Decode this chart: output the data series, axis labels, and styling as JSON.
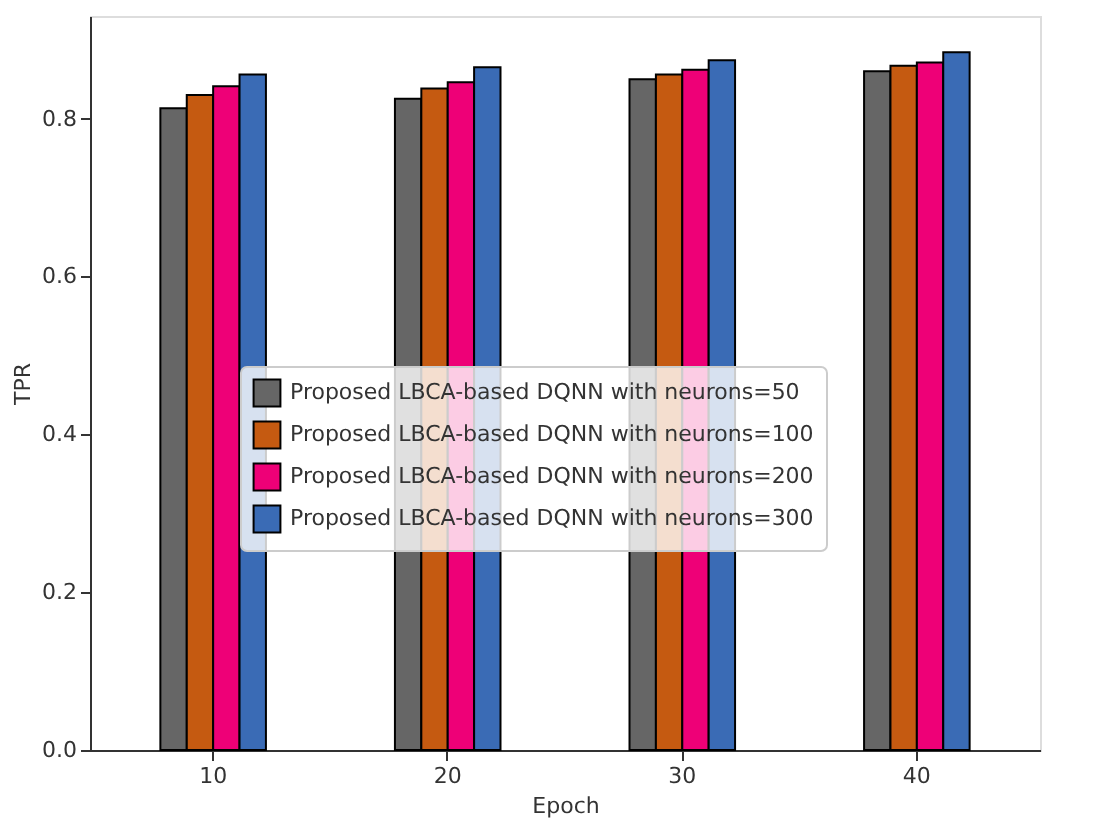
{
  "chart_data": {
    "type": "bar",
    "xlabel": "Epoch",
    "ylabel": "TPR",
    "categories": [
      "10",
      "20",
      "30",
      "40"
    ],
    "series": [
      {
        "name": "Proposed LBCA-based DQNN with neurons=50",
        "color": "#666666",
        "values": [
          0.813,
          0.825,
          0.85,
          0.86
        ]
      },
      {
        "name": "Proposed LBCA-based DQNN with neurons=100",
        "color": "#c55a11",
        "values": [
          0.83,
          0.838,
          0.856,
          0.867
        ]
      },
      {
        "name": "Proposed LBCA-based DQNN with neurons=200",
        "color": "#ee0077",
        "values": [
          0.841,
          0.846,
          0.862,
          0.871
        ]
      },
      {
        "name": "Proposed LBCA-based DQNN with neurons=300",
        "color": "#3a6bb5",
        "values": [
          0.856,
          0.865,
          0.874,
          0.884
        ]
      }
    ],
    "ylim": [
      0,
      0.93
    ],
    "yticks": [
      {
        "value": 0,
        "label": "0.0"
      },
      0.2,
      0.4,
      0.6,
      0.8
    ],
    "grid": false,
    "legend": "center"
  }
}
